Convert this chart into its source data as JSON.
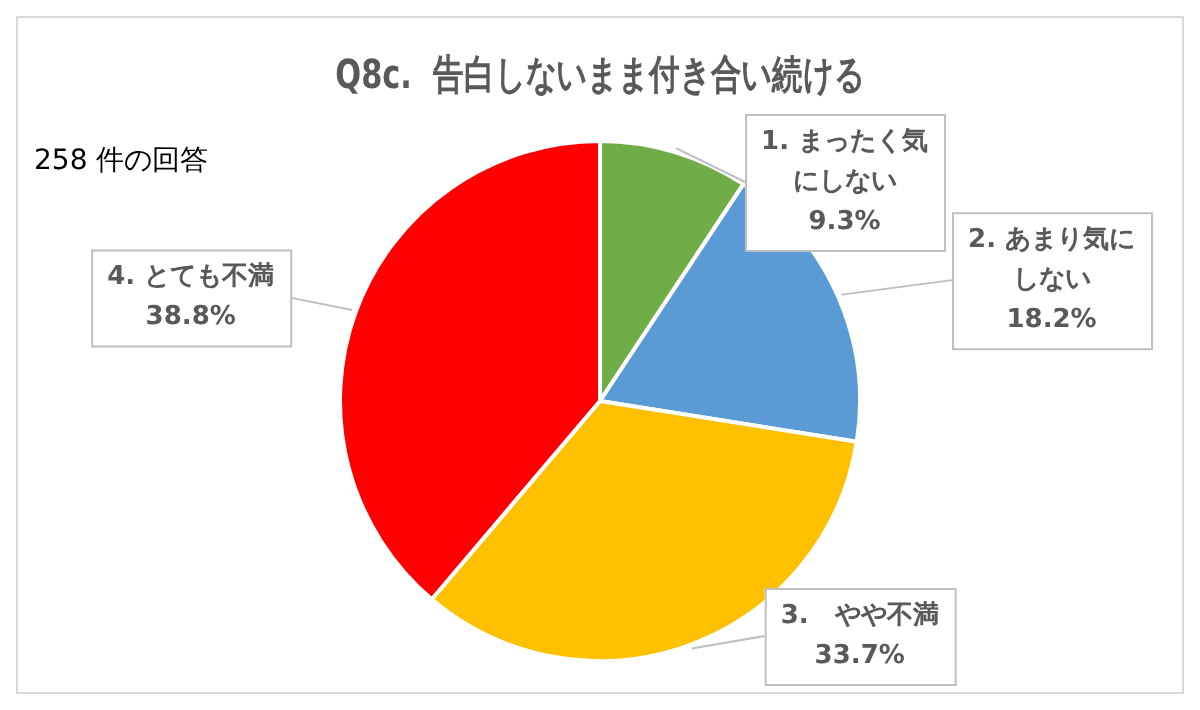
{
  "chart_data": {
    "type": "pie",
    "title": "Q8c.  告白しないまま付き合い続ける",
    "annotations": [
      "258 件の回答"
    ],
    "categories": [
      "1. まったく気にしない",
      "2. あまり気にしない",
      "3.　やや不満",
      "4. とても不満"
    ],
    "values": [
      9.3,
      18.2,
      33.7,
      38.8
    ],
    "colors": [
      "#70ad47",
      "#5b9bd5",
      "#ffc000",
      "#ff0000"
    ],
    "value_labels": [
      "9.3%",
      "18.2%",
      "33.7%",
      "38.8%"
    ],
    "legend": false
  }
}
